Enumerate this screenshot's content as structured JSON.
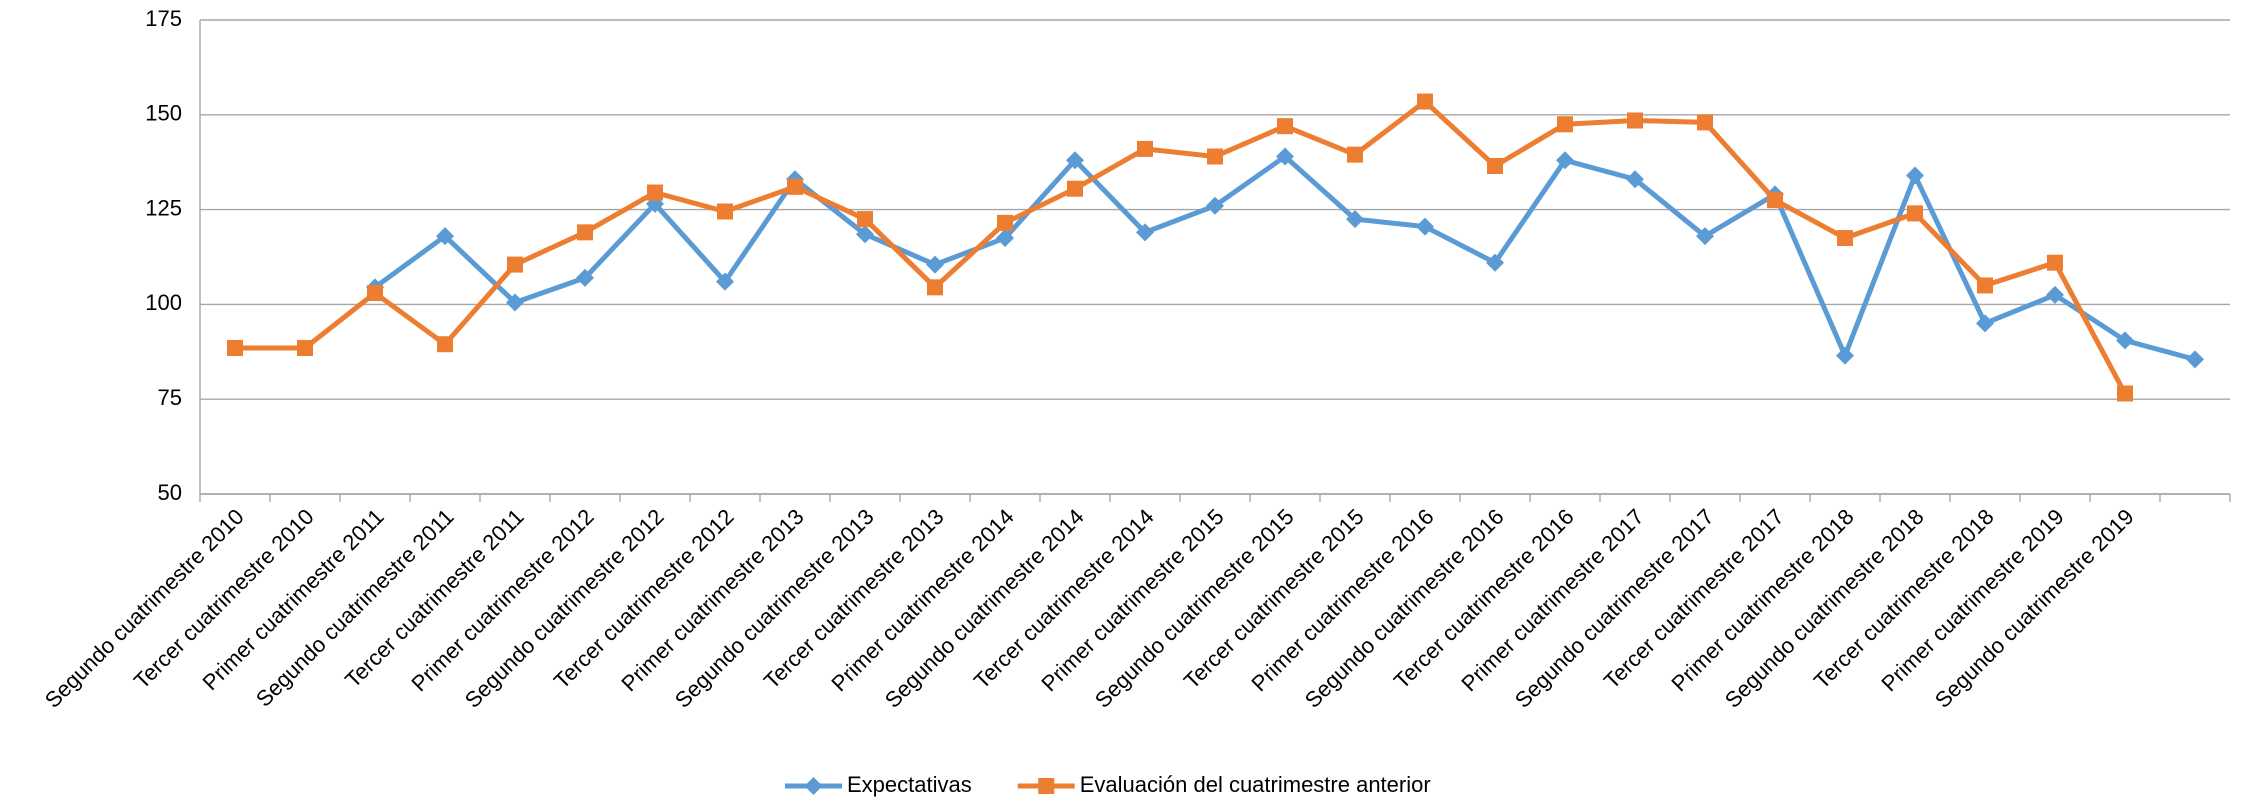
{
  "chart_data": {
    "type": "line",
    "categories": [
      "Segundo cuatrimestre 2010",
      "Tercer cuatrimestre 2010",
      "Primer cuatrimestre 2011",
      "Segundo cuatrimestre 2011",
      "Tercer cuatrimestre 2011",
      "Primer cuatrimestre 2012",
      "Segundo cuatrimestre 2012",
      "Tercer cuatrimestre 2012",
      "Primer cuatrimestre 2013",
      "Segundo cuatrimestre 2013",
      "Tercer cuatrimestre 2013",
      "Primer cuatrimestre 2014",
      "Segundo cuatrimestre 2014",
      "Tercer cuatrimestre 2014",
      "Primer cuatrimestre 2015",
      "Segundo cuatrimestre 2015",
      "Tercer cuatrimestre 2015",
      "Primer cuatrimestre 2016",
      "Segundo cuatrimestre 2016",
      "Tercer cuatrimestre 2016",
      "Primer cuatrimestre 2017",
      "Segundo cuatrimestre 2017",
      "Tercer cuatrimestre 2017",
      "Primer cuatrimestre 2018",
      "Segundo cuatrimestre 2018",
      "Tercer cuatrimestre 2018",
      "Primer cuatrimestre 2019",
      "Segundo cuatrimestre 2019",
      null
    ],
    "series": [
      {
        "name": "Expectativas",
        "color": "#5b9bd5",
        "marker": "diamond",
        "values": [
          null,
          null,
          104.5,
          118,
          100.5,
          107,
          126.5,
          106,
          133,
          118.5,
          110.5,
          117.5,
          138,
          119,
          126,
          139,
          122.5,
          120.5,
          111,
          138,
          133,
          118,
          129,
          86.5,
          134,
          95,
          102.5,
          90.5,
          85.5
        ]
      },
      {
        "name": "Evaluación del cuatrimestre anterior",
        "color": "#ed7d31",
        "marker": "square",
        "values": [
          88.5,
          88.5,
          103,
          89.5,
          110.5,
          119,
          129.5,
          124.5,
          131,
          122.5,
          104.5,
          121.5,
          130.5,
          141,
          139,
          147,
          139.5,
          153.5,
          136.5,
          147.5,
          148.5,
          148,
          127.5,
          117.5,
          124,
          105,
          111,
          76.5,
          null
        ]
      }
    ],
    "ylim": [
      50,
      175
    ],
    "yticks": [
      50,
      75,
      100,
      125,
      150,
      175
    ],
    "grid": true,
    "legend": "bottom"
  }
}
